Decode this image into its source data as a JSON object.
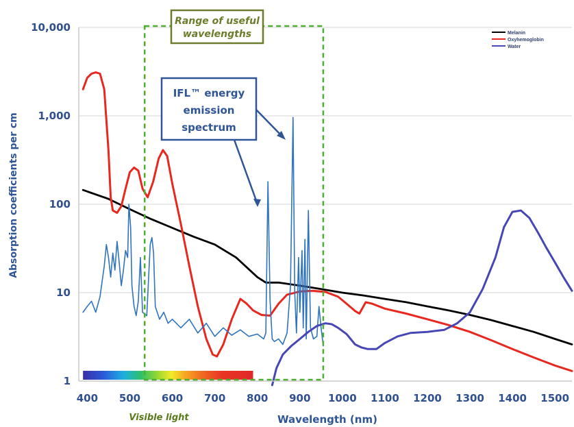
{
  "chart_data": {
    "type": "line",
    "title": "",
    "xlabel": "Wavelength (nm)",
    "ylabel": "Absorption coefficients per cm",
    "xlim": [
      380,
      1540
    ],
    "ylim": [
      1,
      10000
    ],
    "yscale": "log",
    "x_ticks": [
      400,
      500,
      600,
      700,
      800,
      900,
      1000,
      1100,
      1200,
      1300,
      1400,
      1500
    ],
    "y_ticks": [
      {
        "value": 1,
        "label": "1"
      },
      {
        "value": 10,
        "label": "10"
      },
      {
        "value": 100,
        "label": "100"
      },
      {
        "value": 1000,
        "label": "1,000"
      },
      {
        "value": 10000,
        "label": "10,000"
      }
    ],
    "grid": "horizontal",
    "legend_position": "top-right",
    "colors": {
      "melanin": "#000000",
      "oxy": "#e8281e",
      "water": "#4646b4",
      "ifl": "#2e73bd",
      "range": "#4caf30",
      "axis_text": "#2f5597"
    },
    "series": [
      {
        "name": "Melanin",
        "color": "#000000",
        "points": [
          [
            390,
            145
          ],
          [
            450,
            115
          ],
          [
            500,
            88
          ],
          [
            550,
            68
          ],
          [
            600,
            54
          ],
          [
            650,
            43
          ],
          [
            700,
            35
          ],
          [
            750,
            25
          ],
          [
            800,
            15
          ],
          [
            820,
            13
          ],
          [
            850,
            13
          ],
          [
            900,
            12
          ],
          [
            950,
            11
          ],
          [
            1000,
            10
          ],
          [
            1050,
            9.3
          ],
          [
            1100,
            8.5
          ],
          [
            1150,
            7.8
          ],
          [
            1200,
            7
          ],
          [
            1250,
            6.3
          ],
          [
            1300,
            5.6
          ],
          [
            1350,
            4.9
          ],
          [
            1400,
            4.2
          ],
          [
            1450,
            3.6
          ],
          [
            1500,
            3.0
          ],
          [
            1540,
            2.6
          ]
        ]
      },
      {
        "name": "Oxyhemoglobin",
        "color": "#e8281e",
        "points": [
          [
            390,
            2000
          ],
          [
            400,
            2700
          ],
          [
            410,
            3000
          ],
          [
            420,
            3100
          ],
          [
            430,
            3000
          ],
          [
            440,
            2000
          ],
          [
            450,
            400
          ],
          [
            455,
            120
          ],
          [
            460,
            85
          ],
          [
            470,
            80
          ],
          [
            480,
            95
          ],
          [
            490,
            150
          ],
          [
            500,
            230
          ],
          [
            510,
            260
          ],
          [
            520,
            240
          ],
          [
            530,
            150
          ],
          [
            542,
            120
          ],
          [
            555,
            180
          ],
          [
            568,
            330
          ],
          [
            578,
            410
          ],
          [
            588,
            350
          ],
          [
            600,
            170
          ],
          [
            620,
            60
          ],
          [
            640,
            20
          ],
          [
            660,
            7
          ],
          [
            680,
            3
          ],
          [
            695,
            2.0
          ],
          [
            705,
            1.9
          ],
          [
            720,
            2.6
          ],
          [
            740,
            5
          ],
          [
            760,
            8.5
          ],
          [
            775,
            7.5
          ],
          [
            790,
            6.3
          ],
          [
            810,
            5.6
          ],
          [
            830,
            5.5
          ],
          [
            850,
            7.5
          ],
          [
            870,
            9.5
          ],
          [
            900,
            10.3
          ],
          [
            930,
            10.5
          ],
          [
            960,
            10.2
          ],
          [
            990,
            9
          ],
          [
            1010,
            7.5
          ],
          [
            1030,
            6.2
          ],
          [
            1040,
            5.8
          ],
          [
            1055,
            7.8
          ],
          [
            1070,
            7.5
          ],
          [
            1100,
            6.6
          ],
          [
            1150,
            5.8
          ],
          [
            1200,
            5
          ],
          [
            1250,
            4.3
          ],
          [
            1300,
            3.6
          ],
          [
            1350,
            2.9
          ],
          [
            1400,
            2.3
          ],
          [
            1450,
            1.85
          ],
          [
            1500,
            1.5
          ],
          [
            1540,
            1.3
          ]
        ]
      },
      {
        "name": "Water",
        "color": "#4646b4",
        "points": [
          [
            835,
            0.9
          ],
          [
            845,
            1.4
          ],
          [
            860,
            2.0
          ],
          [
            880,
            2.5
          ],
          [
            900,
            3.0
          ],
          [
            920,
            3.6
          ],
          [
            940,
            4.2
          ],
          [
            960,
            4.5
          ],
          [
            975,
            4.4
          ],
          [
            990,
            4.0
          ],
          [
            1010,
            3.4
          ],
          [
            1030,
            2.6
          ],
          [
            1045,
            2.4
          ],
          [
            1060,
            2.3
          ],
          [
            1080,
            2.3
          ],
          [
            1100,
            2.7
          ],
          [
            1130,
            3.2
          ],
          [
            1160,
            3.5
          ],
          [
            1200,
            3.6
          ],
          [
            1240,
            3.8
          ],
          [
            1270,
            4.5
          ],
          [
            1300,
            6
          ],
          [
            1330,
            11
          ],
          [
            1360,
            25
          ],
          [
            1380,
            55
          ],
          [
            1400,
            82
          ],
          [
            1420,
            85
          ],
          [
            1440,
            70
          ],
          [
            1460,
            48
          ],
          [
            1480,
            32
          ],
          [
            1500,
            22
          ],
          [
            1520,
            15
          ],
          [
            1540,
            10.5
          ]
        ]
      },
      {
        "name": "IFL™ energy emission spectrum",
        "color": "#2e73bd",
        "points": [
          [
            390,
            6
          ],
          [
            400,
            7
          ],
          [
            410,
            8
          ],
          [
            420,
            6
          ],
          [
            430,
            9
          ],
          [
            440,
            20
          ],
          [
            445,
            35
          ],
          [
            450,
            25
          ],
          [
            455,
            15
          ],
          [
            460,
            28
          ],
          [
            465,
            18
          ],
          [
            470,
            38
          ],
          [
            475,
            22
          ],
          [
            480,
            12
          ],
          [
            485,
            18
          ],
          [
            490,
            30
          ],
          [
            495,
            25
          ],
          [
            498,
            100
          ],
          [
            502,
            55
          ],
          [
            505,
            12
          ],
          [
            510,
            7
          ],
          [
            515,
            5.5
          ],
          [
            520,
            8
          ],
          [
            525,
            25
          ],
          [
            530,
            6
          ],
          [
            540,
            5.5
          ],
          [
            548,
            35
          ],
          [
            552,
            42
          ],
          [
            556,
            28
          ],
          [
            560,
            7
          ],
          [
            570,
            5
          ],
          [
            580,
            6
          ],
          [
            590,
            4.5
          ],
          [
            600,
            5
          ],
          [
            620,
            4
          ],
          [
            640,
            5
          ],
          [
            660,
            3.5
          ],
          [
            680,
            4.5
          ],
          [
            700,
            3.2
          ],
          [
            720,
            4
          ],
          [
            740,
            3.3
          ],
          [
            760,
            3.8
          ],
          [
            780,
            3.2
          ],
          [
            800,
            3.4
          ],
          [
            815,
            3.0
          ],
          [
            820,
            3.5
          ],
          [
            825,
            180
          ],
          [
            830,
            8
          ],
          [
            835,
            3.0
          ],
          [
            840,
            2.8
          ],
          [
            850,
            3
          ],
          [
            860,
            2.6
          ],
          [
            870,
            3.5
          ],
          [
            878,
            12
          ],
          [
            884,
            960
          ],
          [
            888,
            10
          ],
          [
            892,
            3.5
          ],
          [
            897,
            25
          ],
          [
            900,
            6
          ],
          [
            905,
            30
          ],
          [
            908,
            4
          ],
          [
            912,
            40
          ],
          [
            915,
            3
          ],
          [
            920,
            85
          ],
          [
            925,
            4
          ],
          [
            932,
            3
          ],
          [
            940,
            3.2
          ],
          [
            945,
            7
          ],
          [
            950,
            4
          ],
          [
            955,
            2.5
          ]
        ]
      }
    ]
  },
  "legend": [
    {
      "label": "Melanin",
      "color": "#000000"
    },
    {
      "label": "Oxyhemoglobin",
      "color": "#e8281e"
    },
    {
      "label": "Water",
      "color": "#4646b4"
    }
  ],
  "annotations": {
    "range_line1": "Range of useful",
    "range_line2": "wavelengths",
    "ifl_line1": "IFL™ energy",
    "ifl_line2": "emission",
    "ifl_line3": "spectrum",
    "visible_light": "Visible light",
    "range_nm": [
      535,
      955
    ],
    "visible_nm": [
      390,
      790
    ]
  }
}
